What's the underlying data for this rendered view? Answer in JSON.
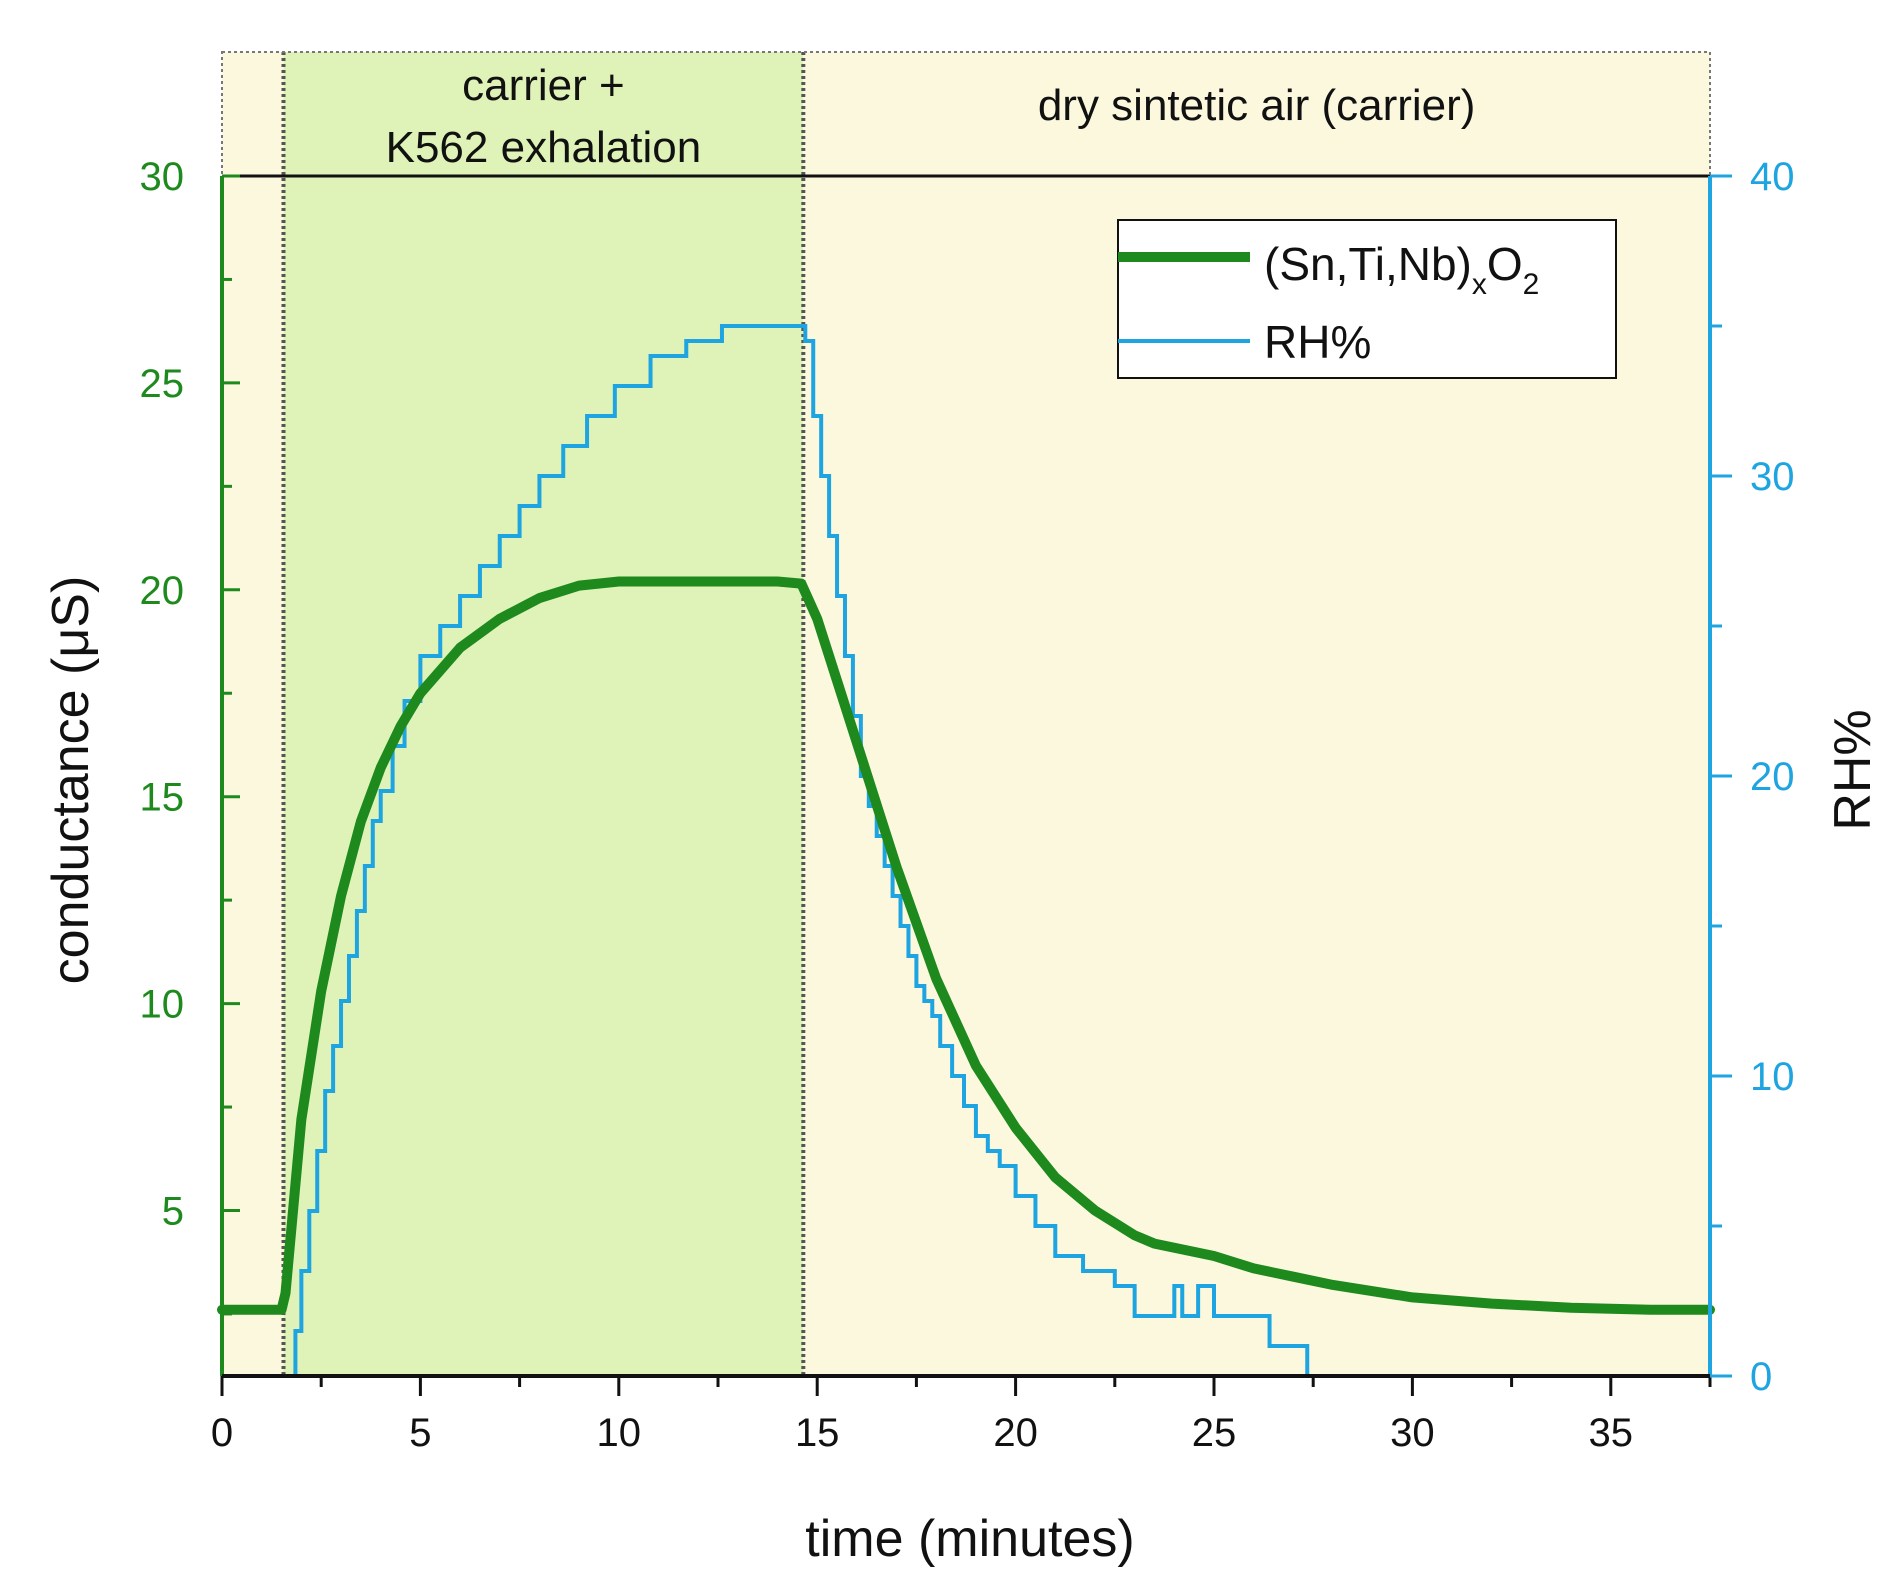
{
  "chart_data": {
    "type": "line",
    "title": "",
    "xlabel": "time (minutes)",
    "ylabel_left": "conductance (μS)",
    "ylabel_right": "RH%",
    "xlim": [
      0,
      37.5
    ],
    "ylim_left": [
      1,
      30
    ],
    "ylim_right": [
      0,
      40
    ],
    "x_ticks": [
      0,
      5,
      10,
      15,
      20,
      25,
      30,
      35
    ],
    "y_left_ticks": [
      5,
      10,
      15,
      20,
      25,
      30
    ],
    "y_right_ticks": [
      0,
      10,
      20,
      30,
      40
    ],
    "regions": [
      {
        "name": "baseline",
        "x_start": 0,
        "x_end": 1.55,
        "label": "",
        "color": "#fbf8de"
      },
      {
        "name": "exhalation",
        "x_start": 1.55,
        "x_end": 14.65,
        "label_line1": "carrier +",
        "label_line2": "K562 exhalation",
        "color": "#dff3b8"
      },
      {
        "name": "recovery",
        "x_start": 14.65,
        "x_end": 37.5,
        "label": "dry sintetic air (carrier)",
        "color": "#fbf8de"
      }
    ],
    "reference_line": {
      "axis": "left",
      "y": 30,
      "color": "#111111"
    },
    "legend": {
      "position": "top-right",
      "entries": [
        {
          "label_main": "(Sn,Ti,Nb)",
          "label_sub1": "x",
          "label_mid": "O",
          "label_sub2": "2",
          "color": "#1e8a1e"
        },
        {
          "label_main": "RH%",
          "color": "#1ea4e0"
        }
      ]
    },
    "series": [
      {
        "name": "(Sn,Ti,Nb)xO2",
        "axis": "left",
        "color": "#1e8a1e",
        "x": [
          0,
          0.5,
          1.0,
          1.5,
          1.6,
          2.0,
          2.5,
          3.0,
          3.5,
          4.0,
          4.5,
          5.0,
          6.0,
          7.0,
          8.0,
          9.0,
          10.0,
          11.0,
          12.0,
          13.0,
          14.0,
          14.6,
          15.0,
          15.5,
          16.0,
          17.0,
          18.0,
          19.0,
          20.0,
          21.0,
          22.0,
          23.0,
          23.5,
          24.0,
          25.0,
          26.0,
          27.0,
          28.0,
          30.0,
          32.0,
          34.0,
          36.0,
          37.5
        ],
        "y": [
          2.6,
          2.6,
          2.6,
          2.6,
          3.0,
          7.2,
          10.3,
          12.6,
          14.4,
          15.7,
          16.7,
          17.5,
          18.6,
          19.3,
          19.8,
          20.1,
          20.2,
          20.2,
          20.2,
          20.2,
          20.2,
          20.15,
          19.3,
          17.8,
          16.3,
          13.3,
          10.6,
          8.5,
          7.0,
          5.8,
          5.0,
          4.4,
          4.2,
          4.1,
          3.9,
          3.6,
          3.4,
          3.2,
          2.9,
          2.75,
          2.65,
          2.6,
          2.6
        ]
      },
      {
        "name": "RH%",
        "axis": "right",
        "color": "#1ea4e0",
        "x": [
          0,
          1.7,
          1.85,
          2.0,
          2.2,
          2.4,
          2.6,
          2.8,
          3.0,
          3.2,
          3.4,
          3.6,
          3.8,
          4.0,
          4.3,
          4.6,
          5.0,
          5.5,
          6.0,
          6.5,
          7.0,
          7.5,
          8.0,
          8.6,
          9.2,
          9.9,
          10.8,
          11.7,
          12.6,
          13.5,
          14.5,
          14.7,
          14.9,
          15.1,
          15.3,
          15.5,
          15.7,
          15.9,
          16.1,
          16.3,
          16.5,
          16.7,
          16.9,
          17.1,
          17.3,
          17.5,
          17.7,
          17.9,
          18.1,
          18.4,
          18.7,
          19.0,
          19.3,
          19.6,
          20.0,
          20.5,
          21.0,
          21.7,
          22.5,
          23.0,
          23.8,
          24.0,
          24.2,
          24.4,
          24.6,
          24.8,
          25.0,
          25.6,
          26.4,
          27.3,
          27.35,
          37.5
        ],
        "y": [
          0,
          0,
          1.5,
          3.5,
          5.5,
          7.5,
          9.5,
          11,
          12.5,
          14,
          15.5,
          17,
          18.5,
          19.5,
          21,
          22.5,
          24,
          25,
          26,
          27,
          28,
          29,
          30,
          31,
          32,
          33,
          34,
          34.5,
          35,
          35,
          35,
          34.5,
          32,
          30,
          28,
          26,
          24,
          22,
          20,
          19,
          18,
          17,
          16,
          15,
          14,
          13,
          12.5,
          12,
          11,
          10,
          9,
          8,
          7.5,
          7,
          6,
          5,
          4,
          3.5,
          3,
          2,
          2,
          3,
          2,
          2,
          3,
          3,
          2,
          2,
          1,
          1,
          0,
          0
        ]
      }
    ]
  }
}
